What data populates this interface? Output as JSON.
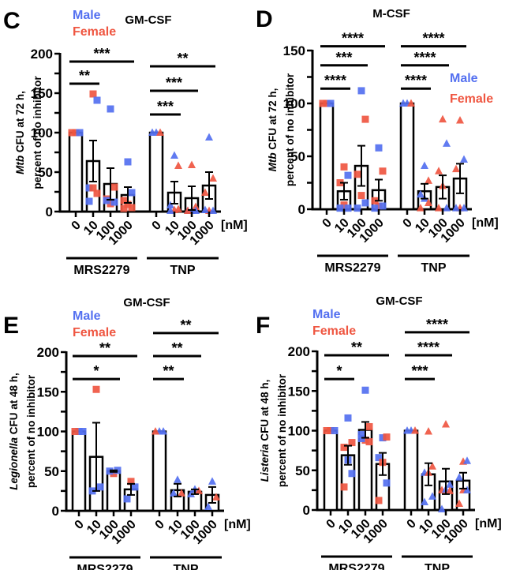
{
  "colors": {
    "male": "#5470f0",
    "female": "#ef5641",
    "axis": "#000000"
  },
  "legend": {
    "male": "Male",
    "female": "Female"
  },
  "chart_data": [
    {
      "panel": "C",
      "type": "bar",
      "title": "GM-CSF",
      "ylabel_italic": "Mtb",
      "ylabel_rest": " CFU at 72 h,",
      "ylabel_line2": "percent of no inhibitor",
      "ylim": [
        0,
        200
      ],
      "yticks": [
        0,
        50,
        100,
        150,
        200
      ],
      "unit_label": "[nM]",
      "categories": [
        "0",
        "10",
        "100",
        "1000",
        "0",
        "10",
        "100",
        "1000"
      ],
      "groups": [
        {
          "name": "MRS2279",
          "span": [
            0,
            3
          ]
        },
        {
          "name": "TNP",
          "span": [
            4,
            7
          ]
        }
      ],
      "means": [
        100,
        64,
        35,
        21,
        100,
        24,
        17,
        33
      ],
      "sem": [
        0,
        26,
        20,
        10,
        0,
        14,
        15,
        17
      ],
      "marker_by_group": [
        "square",
        "triangle"
      ],
      "points": [
        {
          "cat": 0,
          "sex": "F",
          "v": 100
        },
        {
          "cat": 0,
          "sex": "M",
          "v": 100
        },
        {
          "cat": 0,
          "sex": "F",
          "v": 100
        },
        {
          "cat": 1,
          "sex": "F",
          "v": 149
        },
        {
          "cat": 1,
          "sex": "M",
          "v": 141
        },
        {
          "cat": 1,
          "sex": "M",
          "v": 30
        },
        {
          "cat": 1,
          "sex": "F",
          "v": 30
        },
        {
          "cat": 1,
          "sex": "F",
          "v": 23
        },
        {
          "cat": 1,
          "sex": "M",
          "v": 13
        },
        {
          "cat": 2,
          "sex": "M",
          "v": 130
        },
        {
          "cat": 2,
          "sex": "F",
          "v": 31
        },
        {
          "cat": 2,
          "sex": "F",
          "v": 16
        },
        {
          "cat": 2,
          "sex": "F",
          "v": 10
        },
        {
          "cat": 2,
          "sex": "M",
          "v": 12
        },
        {
          "cat": 2,
          "sex": "M",
          "v": 14
        },
        {
          "cat": 3,
          "sex": "M",
          "v": 63
        },
        {
          "cat": 3,
          "sex": "M",
          "v": 24
        },
        {
          "cat": 3,
          "sex": "F",
          "v": 14
        },
        {
          "cat": 3,
          "sex": "F",
          "v": 9
        },
        {
          "cat": 3,
          "sex": "F",
          "v": 5
        },
        {
          "cat": 3,
          "sex": "F",
          "v": 4
        },
        {
          "cat": 4,
          "sex": "M",
          "v": 100
        },
        {
          "cat": 4,
          "sex": "F",
          "v": 100
        },
        {
          "cat": 4,
          "sex": "M",
          "v": 100
        },
        {
          "cat": 5,
          "sex": "M",
          "v": 71
        },
        {
          "cat": 5,
          "sex": "F",
          "v": 58
        },
        {
          "cat": 5,
          "sex": "M",
          "v": 8
        },
        {
          "cat": 5,
          "sex": "F",
          "v": 2
        },
        {
          "cat": 5,
          "sex": "F",
          "v": 3
        },
        {
          "cat": 5,
          "sex": "M",
          "v": 1
        },
        {
          "cat": 6,
          "sex": "F",
          "v": 59
        },
        {
          "cat": 6,
          "sex": "F",
          "v": 6
        },
        {
          "cat": 6,
          "sex": "M",
          "v": 1
        },
        {
          "cat": 6,
          "sex": "M",
          "v": 1
        },
        {
          "cat": 6,
          "sex": "M",
          "v": 1
        },
        {
          "cat": 6,
          "sex": "F",
          "v": 1
        },
        {
          "cat": 7,
          "sex": "M",
          "v": 94
        },
        {
          "cat": 7,
          "sex": "F",
          "v": 42
        },
        {
          "cat": 7,
          "sex": "F",
          "v": 24
        },
        {
          "cat": 7,
          "sex": "F",
          "v": 1
        },
        {
          "cat": 7,
          "sex": "M",
          "v": 1
        },
        {
          "cat": 7,
          "sex": "M",
          "v": 2
        }
      ],
      "significance": [
        {
          "from": 0,
          "to": 3,
          "label": "***",
          "level": 190
        },
        {
          "from": 0,
          "to": 1,
          "label": "**",
          "level": 162
        },
        {
          "from": 4,
          "to": 7,
          "label": "**",
          "level": 184
        },
        {
          "from": 4,
          "to": 6,
          "label": "***",
          "level": 153
        },
        {
          "from": 4,
          "to": 5,
          "label": "***",
          "level": 123
        }
      ]
    },
    {
      "panel": "D",
      "type": "bar",
      "title": "M-CSF",
      "ylabel_italic": "Mtb",
      "ylabel_rest": " CFU at 72 h,",
      "ylabel_line2": "percent of no inhibitor",
      "ylim": [
        0,
        150
      ],
      "yticks": [
        0,
        50,
        100,
        150
      ],
      "unit_label": "[nM]",
      "categories": [
        "0",
        "10",
        "100",
        "1000",
        "0",
        "10",
        "100",
        "1000"
      ],
      "groups": [
        {
          "name": "MRS2279",
          "span": [
            0,
            3
          ]
        },
        {
          "name": "TNP",
          "span": [
            4,
            7
          ]
        }
      ],
      "means": [
        100,
        17,
        41,
        18,
        100,
        17,
        21,
        29
      ],
      "sem": [
        0,
        8,
        19,
        10,
        0,
        7,
        11,
        14
      ],
      "marker_by_group": [
        "square",
        "triangle"
      ],
      "points": [
        {
          "cat": 0,
          "sex": "F",
          "v": 100
        },
        {
          "cat": 0,
          "sex": "M",
          "v": 100
        },
        {
          "cat": 0,
          "sex": "F",
          "v": 100
        },
        {
          "cat": 1,
          "sex": "F",
          "v": 40
        },
        {
          "cat": 1,
          "sex": "M",
          "v": 32
        },
        {
          "cat": 1,
          "sex": "F",
          "v": 25
        },
        {
          "cat": 1,
          "sex": "F",
          "v": 4
        },
        {
          "cat": 1,
          "sex": "M",
          "v": 1
        },
        {
          "cat": 1,
          "sex": "M",
          "v": 1
        },
        {
          "cat": 2,
          "sex": "M",
          "v": 112
        },
        {
          "cat": 2,
          "sex": "F",
          "v": 85
        },
        {
          "cat": 2,
          "sex": "F",
          "v": 33
        },
        {
          "cat": 2,
          "sex": "F",
          "v": 13
        },
        {
          "cat": 2,
          "sex": "M",
          "v": 6
        },
        {
          "cat": 2,
          "sex": "M",
          "v": 1
        },
        {
          "cat": 3,
          "sex": "M",
          "v": 58
        },
        {
          "cat": 3,
          "sex": "F",
          "v": 36
        },
        {
          "cat": 3,
          "sex": "F",
          "v": 8
        },
        {
          "cat": 3,
          "sex": "F",
          "v": 3
        },
        {
          "cat": 3,
          "sex": "M",
          "v": 3
        },
        {
          "cat": 3,
          "sex": "M",
          "v": 1
        },
        {
          "cat": 4,
          "sex": "M",
          "v": 100
        },
        {
          "cat": 4,
          "sex": "F",
          "v": 100
        },
        {
          "cat": 4,
          "sex": "M",
          "v": 100
        },
        {
          "cat": 5,
          "sex": "M",
          "v": 41
        },
        {
          "cat": 5,
          "sex": "F",
          "v": 27
        },
        {
          "cat": 5,
          "sex": "M",
          "v": 14
        },
        {
          "cat": 5,
          "sex": "M",
          "v": 10
        },
        {
          "cat": 5,
          "sex": "F",
          "v": 6
        },
        {
          "cat": 5,
          "sex": "F",
          "v": 1
        },
        {
          "cat": 6,
          "sex": "F",
          "v": 85
        },
        {
          "cat": 6,
          "sex": "M",
          "v": 62
        },
        {
          "cat": 6,
          "sex": "F",
          "v": 36
        },
        {
          "cat": 6,
          "sex": "F",
          "v": 22
        },
        {
          "cat": 6,
          "sex": "M",
          "v": 1
        },
        {
          "cat": 6,
          "sex": "F",
          "v": 1
        },
        {
          "cat": 7,
          "sex": "F",
          "v": 84
        },
        {
          "cat": 7,
          "sex": "M",
          "v": 47
        },
        {
          "cat": 7,
          "sex": "F",
          "v": 38
        },
        {
          "cat": 7,
          "sex": "F",
          "v": 1
        },
        {
          "cat": 7,
          "sex": "M",
          "v": 1
        },
        {
          "cat": 7,
          "sex": "M",
          "v": 1
        }
      ],
      "significance": [
        {
          "from": 0,
          "to": 3,
          "label": "****",
          "level": 154
        },
        {
          "from": 0,
          "to": 2,
          "label": "***",
          "level": 136
        },
        {
          "from": 0,
          "to": 1,
          "label": "****",
          "level": 114
        },
        {
          "from": 4,
          "to": 7,
          "label": "****",
          "level": 154
        },
        {
          "from": 4,
          "to": 6,
          "label": "****",
          "level": 136
        },
        {
          "from": 4,
          "to": 5,
          "label": "****",
          "level": 114
        }
      ]
    },
    {
      "panel": "E",
      "type": "bar",
      "title": "GM-CSF",
      "ylabel_italic": "Legionella",
      "ylabel_rest": " CFU at 48 h,",
      "ylabel_line2": "percent of no inhibitor",
      "ylim": [
        0,
        200
      ],
      "yticks": [
        0,
        50,
        100,
        150,
        200
      ],
      "unit_label": "[nM]",
      "categories": [
        "0",
        "10",
        "100",
        "1000",
        "0",
        "10",
        "100",
        "1000"
      ],
      "groups": [
        {
          "name": "MRS2279",
          "span": [
            0,
            3
          ]
        },
        {
          "name": "TNP",
          "span": [
            4,
            7
          ]
        }
      ],
      "means": [
        100,
        68,
        50,
        27,
        100,
        26,
        24,
        20
      ],
      "sem": [
        0,
        43,
        1,
        7,
        0,
        8,
        3,
        10
      ],
      "marker_by_group": [
        "square",
        "triangle"
      ],
      "points": [
        {
          "cat": 0,
          "sex": "M",
          "v": 100
        },
        {
          "cat": 0,
          "sex": "M",
          "v": 100
        },
        {
          "cat": 0,
          "sex": "F",
          "v": 100
        },
        {
          "cat": 1,
          "sex": "F",
          "v": 153
        },
        {
          "cat": 1,
          "sex": "M",
          "v": 30
        },
        {
          "cat": 1,
          "sex": "M",
          "v": 25
        },
        {
          "cat": 2,
          "sex": "F",
          "v": 47
        },
        {
          "cat": 2,
          "sex": "M",
          "v": 51
        },
        {
          "cat": 2,
          "sex": "M",
          "v": 50
        },
        {
          "cat": 3,
          "sex": "F",
          "v": 37
        },
        {
          "cat": 3,
          "sex": "M",
          "v": 30
        },
        {
          "cat": 3,
          "sex": "M",
          "v": 15
        },
        {
          "cat": 4,
          "sex": "M",
          "v": 100
        },
        {
          "cat": 4,
          "sex": "M",
          "v": 100
        },
        {
          "cat": 4,
          "sex": "F",
          "v": 100
        },
        {
          "cat": 5,
          "sex": "M",
          "v": 39
        },
        {
          "cat": 5,
          "sex": "F",
          "v": 22
        },
        {
          "cat": 5,
          "sex": "M",
          "v": 22
        },
        {
          "cat": 6,
          "sex": "M",
          "v": 27
        },
        {
          "cat": 6,
          "sex": "F",
          "v": 25
        },
        {
          "cat": 6,
          "sex": "M",
          "v": 21
        },
        {
          "cat": 7,
          "sex": "M",
          "v": 37
        },
        {
          "cat": 7,
          "sex": "F",
          "v": 17
        },
        {
          "cat": 7,
          "sex": "M",
          "v": 5
        }
      ],
      "significance": [
        {
          "from": 0,
          "to": 3,
          "label": "**",
          "level": 195
        },
        {
          "from": 0,
          "to": 2,
          "label": "*",
          "level": 166
        },
        {
          "from": 4,
          "to": 7,
          "label": "**",
          "level": 224
        },
        {
          "from": 4,
          "to": 6,
          "label": "**",
          "level": 195
        },
        {
          "from": 4,
          "to": 5,
          "label": "**",
          "level": 166
        }
      ]
    },
    {
      "panel": "F",
      "type": "bar",
      "title": "GM-CSF",
      "ylabel_italic": "Listeria",
      "ylabel_rest": " CFU at 48 h,",
      "ylabel_line2": "percent of no inhibitor",
      "ylim": [
        0,
        200
      ],
      "yticks": [
        0,
        50,
        100,
        150,
        200
      ],
      "unit_label": "[nM]",
      "categories": [
        "0",
        "10",
        "100",
        "1000",
        "0",
        "10",
        "100",
        "1000"
      ],
      "groups": [
        {
          "name": "MRS2279",
          "span": [
            0,
            3
          ]
        },
        {
          "name": "TNP",
          "span": [
            4,
            7
          ]
        }
      ],
      "means": [
        100,
        69,
        101,
        58,
        100,
        45,
        36,
        37
      ],
      "sem": [
        0,
        12,
        10,
        14,
        0,
        14,
        16,
        10
      ],
      "marker_by_group": [
        "square",
        "triangle"
      ],
      "points": [
        {
          "cat": 0,
          "sex": "F",
          "v": 100
        },
        {
          "cat": 0,
          "sex": "M",
          "v": 100
        },
        {
          "cat": 0,
          "sex": "F",
          "v": 100
        },
        {
          "cat": 1,
          "sex": "M",
          "v": 116
        },
        {
          "cat": 1,
          "sex": "F",
          "v": 85
        },
        {
          "cat": 1,
          "sex": "F",
          "v": 79
        },
        {
          "cat": 1,
          "sex": "M",
          "v": 63
        },
        {
          "cat": 1,
          "sex": "M",
          "v": 46
        },
        {
          "cat": 1,
          "sex": "F",
          "v": 29
        },
        {
          "cat": 2,
          "sex": "M",
          "v": 151
        },
        {
          "cat": 2,
          "sex": "F",
          "v": 105
        },
        {
          "cat": 2,
          "sex": "M",
          "v": 95
        },
        {
          "cat": 2,
          "sex": "F",
          "v": 88
        },
        {
          "cat": 2,
          "sex": "F",
          "v": 86
        },
        {
          "cat": 2,
          "sex": "M",
          "v": 90
        },
        {
          "cat": 3,
          "sex": "M",
          "v": 91
        },
        {
          "cat": 3,
          "sex": "F",
          "v": 92
        },
        {
          "cat": 3,
          "sex": "M",
          "v": 66
        },
        {
          "cat": 3,
          "sex": "F",
          "v": 60
        },
        {
          "cat": 3,
          "sex": "M",
          "v": 34
        },
        {
          "cat": 3,
          "sex": "F",
          "v": 12
        },
        {
          "cat": 4,
          "sex": "M",
          "v": 100
        },
        {
          "cat": 4,
          "sex": "F",
          "v": 100
        },
        {
          "cat": 4,
          "sex": "M",
          "v": 100
        },
        {
          "cat": 5,
          "sex": "F",
          "v": 99
        },
        {
          "cat": 5,
          "sex": "F",
          "v": 55
        },
        {
          "cat": 5,
          "sex": "M",
          "v": 47
        },
        {
          "cat": 5,
          "sex": "F",
          "v": 47
        },
        {
          "cat": 5,
          "sex": "M",
          "v": 17
        },
        {
          "cat": 5,
          "sex": "M",
          "v": 10
        },
        {
          "cat": 6,
          "sex": "F",
          "v": 108
        },
        {
          "cat": 6,
          "sex": "M",
          "v": 32
        },
        {
          "cat": 6,
          "sex": "F",
          "v": 25
        },
        {
          "cat": 6,
          "sex": "M",
          "v": 26
        },
        {
          "cat": 6,
          "sex": "F",
          "v": 24
        },
        {
          "cat": 6,
          "sex": "M",
          "v": 1
        },
        {
          "cat": 7,
          "sex": "F",
          "v": 61
        },
        {
          "cat": 7,
          "sex": "M",
          "v": 62
        },
        {
          "cat": 7,
          "sex": "M",
          "v": 41
        },
        {
          "cat": 7,
          "sex": "F",
          "v": 25
        },
        {
          "cat": 7,
          "sex": "M",
          "v": 25
        },
        {
          "cat": 7,
          "sex": "F",
          "v": 8
        }
      ],
      "significance": [
        {
          "from": 0,
          "to": 3,
          "label": "**",
          "level": 195
        },
        {
          "from": 0,
          "to": 1,
          "label": "*",
          "level": 165
        },
        {
          "from": 4,
          "to": 7,
          "label": "****",
          "level": 224
        },
        {
          "from": 4,
          "to": 6,
          "label": "****",
          "level": 195
        },
        {
          "from": 4,
          "to": 5,
          "label": "***",
          "level": 165
        }
      ]
    }
  ]
}
